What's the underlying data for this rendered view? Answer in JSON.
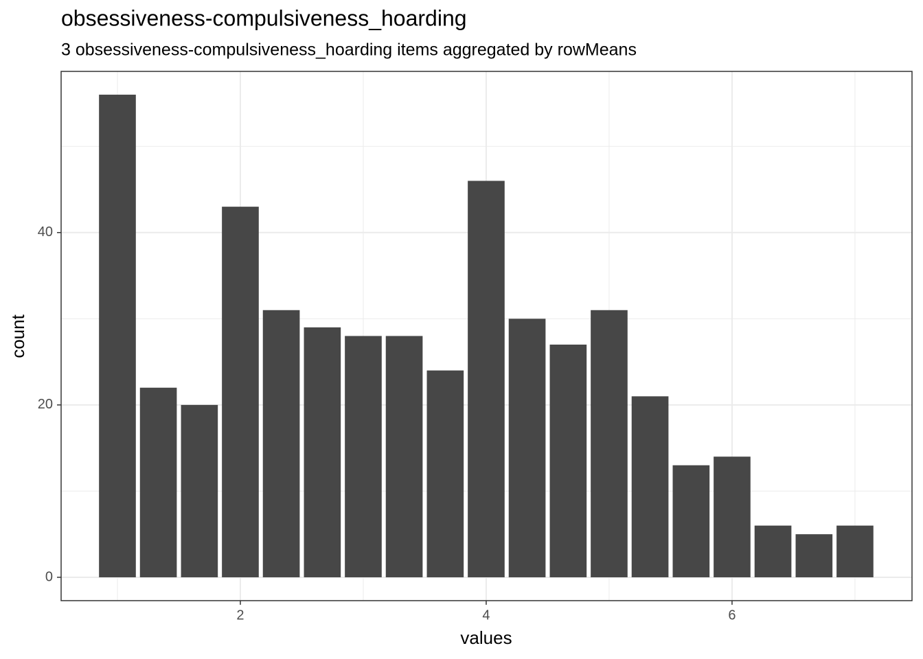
{
  "chart_data": {
    "type": "bar",
    "title": "obsessiveness-compulsiveness_hoarding",
    "subtitle": "3 obsessiveness-compulsiveness_hoarding items aggregated by rowMeans",
    "x_label": "values",
    "y_label": "count",
    "x": [
      1,
      1.333,
      1.667,
      2,
      2.333,
      2.667,
      3,
      3.333,
      3.667,
      4,
      4.333,
      4.667,
      5,
      5.333,
      5.667,
      6,
      6.333,
      6.667,
      7
    ],
    "values": [
      56,
      22,
      20,
      43,
      31,
      29,
      28,
      28,
      24,
      46,
      30,
      27,
      31,
      21,
      13,
      14,
      6,
      5,
      6
    ],
    "color": "#474747",
    "xlim": [
      0.542,
      7.464
    ],
    "xticks": [
      2,
      4,
      6
    ],
    "ylim": [
      -2.71,
      58.7
    ],
    "yticks": [
      0,
      20,
      40
    ],
    "grid": true
  }
}
